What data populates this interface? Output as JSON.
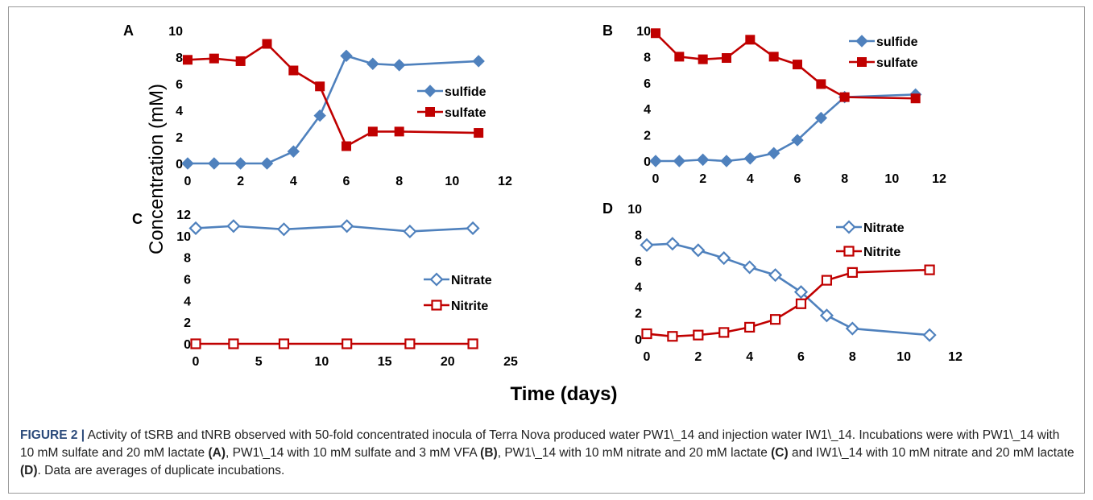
{
  "figure": {
    "y_label": "Concentration (mM)",
    "x_label": "Time (days)"
  },
  "colors": {
    "sulfide": "#4f81bd",
    "sulfate": "#c00000",
    "nitrate": "#4f81bd",
    "nitrite": "#c00000"
  },
  "chart_data": [
    {
      "panel": "A",
      "type": "line",
      "xlim": [
        0,
        12
      ],
      "ylim": [
        0,
        10
      ],
      "xticks": [
        0,
        2,
        4,
        6,
        8,
        10,
        12
      ],
      "yticks": [
        0,
        2,
        4,
        6,
        8,
        10
      ],
      "legend_position": "right",
      "series": [
        {
          "name": "sulfide",
          "marker": "filled-diamond",
          "color": "#4f81bd",
          "x": [
            0,
            1,
            2,
            3,
            4,
            5,
            6,
            7,
            8,
            11
          ],
          "y": [
            0,
            0,
            0,
            0,
            0.9,
            3.6,
            8.1,
            7.5,
            7.4,
            7.7
          ]
        },
        {
          "name": "sulfate",
          "marker": "filled-square",
          "color": "#c00000",
          "x": [
            0,
            1,
            2,
            3,
            4,
            5,
            6,
            7,
            8,
            11
          ],
          "y": [
            7.8,
            7.9,
            7.7,
            9.0,
            7.0,
            5.8,
            1.3,
            2.4,
            2.4,
            2.3
          ]
        }
      ]
    },
    {
      "panel": "B",
      "type": "line",
      "xlim": [
        0,
        12
      ],
      "ylim": [
        0,
        10
      ],
      "xticks": [
        0,
        2,
        4,
        6,
        8,
        10,
        12
      ],
      "yticks": [
        0,
        2,
        4,
        6,
        8,
        10
      ],
      "legend_position": "top-right",
      "series": [
        {
          "name": "sulfide",
          "marker": "filled-diamond",
          "color": "#4f81bd",
          "x": [
            0,
            1,
            2,
            3,
            4,
            5,
            6,
            7,
            8,
            11
          ],
          "y": [
            0,
            0,
            0.1,
            0,
            0.2,
            0.6,
            1.6,
            3.3,
            4.9,
            5.1
          ]
        },
        {
          "name": "sulfate",
          "marker": "filled-square",
          "color": "#c00000",
          "x": [
            0,
            1,
            2,
            3,
            4,
            5,
            6,
            7,
            8,
            11
          ],
          "y": [
            9.8,
            8.0,
            7.8,
            7.9,
            9.3,
            8.0,
            7.4,
            5.9,
            4.9,
            4.8
          ]
        }
      ]
    },
    {
      "panel": "C",
      "type": "line",
      "xlim": [
        0,
        25
      ],
      "ylim": [
        0,
        12
      ],
      "xticks": [
        0,
        5,
        10,
        15,
        20,
        25
      ],
      "yticks": [
        0,
        2,
        4,
        6,
        8,
        10,
        12
      ],
      "legend_position": "right",
      "series": [
        {
          "name": "Nitrate",
          "marker": "open-diamond",
          "color": "#4f81bd",
          "x": [
            0,
            3,
            7,
            12,
            17,
            22
          ],
          "y": [
            10.7,
            10.9,
            10.6,
            10.9,
            10.4,
            10.7
          ]
        },
        {
          "name": "Nitrite",
          "marker": "open-square",
          "color": "#c00000",
          "x": [
            0,
            3,
            7,
            12,
            17,
            22
          ],
          "y": [
            0,
            0,
            0,
            0,
            0,
            0
          ]
        }
      ]
    },
    {
      "panel": "D",
      "type": "line",
      "xlim": [
        0,
        12
      ],
      "ylim": [
        0,
        10
      ],
      "xticks": [
        0,
        2,
        4,
        6,
        8,
        10,
        12
      ],
      "yticks": [
        0,
        2,
        4,
        6,
        8,
        10
      ],
      "legend_position": "top-right",
      "series": [
        {
          "name": "Nitrate",
          "marker": "open-diamond",
          "color": "#4f81bd",
          "x": [
            0,
            1,
            2,
            3,
            4,
            5,
            6,
            7,
            8,
            11
          ],
          "y": [
            7.2,
            7.3,
            6.8,
            6.2,
            5.5,
            4.9,
            3.6,
            1.8,
            0.8,
            0.3
          ]
        },
        {
          "name": "Nitrite",
          "marker": "open-square",
          "color": "#c00000",
          "x": [
            0,
            1,
            2,
            3,
            4,
            5,
            6,
            7,
            8,
            11
          ],
          "y": [
            0.4,
            0.2,
            0.3,
            0.5,
            0.9,
            1.5,
            2.7,
            4.5,
            5.1,
            5.3
          ]
        }
      ]
    }
  ],
  "caption": {
    "label": "FIGURE 2 |",
    "text1": " Activity of tSRB and tNRB observed with 50-fold concentrated inocula of Terra Nova produced water PW1\\_14 and injection water IW1\\_14. Incubations were with PW1\\_14 with 10 mM sulfate and 20 mM lactate ",
    "ref_a": "(A)",
    "text2": ", PW1\\_14 with 10 mM sulfate and 3 mM VFA ",
    "ref_b": "(B)",
    "text3": ", PW1\\_14 with 10 mM nitrate and 20 mM lactate ",
    "ref_c": "(C)",
    "text4": " and IW1\\_14 with 10 mM nitrate and 20 mM lactate ",
    "ref_d": "(D)",
    "text5": ". Data are averages of duplicate incubations."
  }
}
